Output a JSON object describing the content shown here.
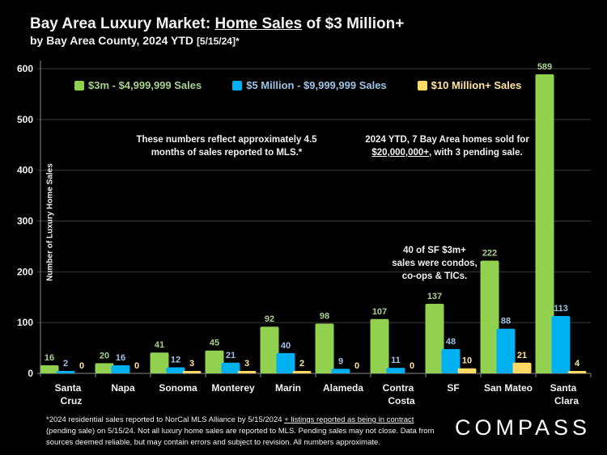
{
  "header": {
    "title_pre": "Bay Area Luxury Market: ",
    "title_underlined": "Home Sales",
    "title_post": " of $3 Million+",
    "subtitle_main": "by Bay Area County, 2024 YTD ",
    "subtitle_small": "[5/15/24]*"
  },
  "annotations": {
    "months_note_line1": "These numbers reflect approximately 4.5",
    "months_note_line2": "months of sales reported to MLS.*",
    "ytd_note_line1": "2024 YTD, 7 Bay Area homes sold for",
    "ytd_note_underlined": "$20,000,000+",
    "ytd_note_rest": ", with 3 pending sale.",
    "sf_note_line1": "40 of SF $3m+",
    "sf_note_line2": "sales were condos,",
    "sf_note_line3": "co-ops & TICs."
  },
  "footnote": {
    "part1": "*2024 residential sales reported to NorCal MLS Alliance by 5/15/2024 ",
    "underlined": "+ listings reported as being in contract",
    "part2": " (pending sale) on 5/15/24. Not all luxury home sales are reported to MLS. Pending sales may not close. Data from sources deemed reliable, but may contain errors and subject to revision. All numbers approximate."
  },
  "logo": {
    "text": "COMPASS"
  },
  "colors": {
    "green": "#92d050",
    "blue": "#00b0f0",
    "yellow": "#ffd966",
    "green_label": "#a9d18e",
    "blue_label": "#9dc3e6",
    "yellow_label": "#ffe699"
  },
  "chart_data": {
    "type": "bar",
    "title": "Bay Area Luxury Market: Home Sales of $3 Million+",
    "subtitle": "by Bay Area County, 2024 YTD [5/15/24]*",
    "xlabel": "",
    "ylabel": "Number of Luxury Home Sales",
    "ylim": [
      0,
      600
    ],
    "yticks": [
      0,
      100,
      200,
      300,
      400,
      500,
      600
    ],
    "grid": true,
    "legend_position": "top",
    "categories": [
      [
        "Santa",
        "Cruz"
      ],
      [
        "Napa"
      ],
      [
        "Sonoma"
      ],
      [
        "Monterey"
      ],
      [
        "Marin"
      ],
      [
        "Alameda"
      ],
      [
        "Contra",
        "Costa"
      ],
      [
        "SF"
      ],
      [
        "San Mateo"
      ],
      [
        "Santa",
        "Clara"
      ]
    ],
    "series": [
      {
        "name": "$3m - $4,999,999 Sales",
        "color": "#92d050",
        "values": [
          16,
          20,
          41,
          45,
          92,
          98,
          107,
          137,
          222,
          589
        ]
      },
      {
        "name": "$5 Million - $9,999,999 Sales",
        "color": "#00b0f0",
        "values": [
          2,
          16,
          12,
          21,
          40,
          9,
          11,
          48,
          88,
          113
        ]
      },
      {
        "name": "$10 Million+ Sales",
        "color": "#ffd966",
        "values": [
          0,
          0,
          3,
          3,
          2,
          0,
          0,
          10,
          21,
          4
        ]
      }
    ]
  }
}
